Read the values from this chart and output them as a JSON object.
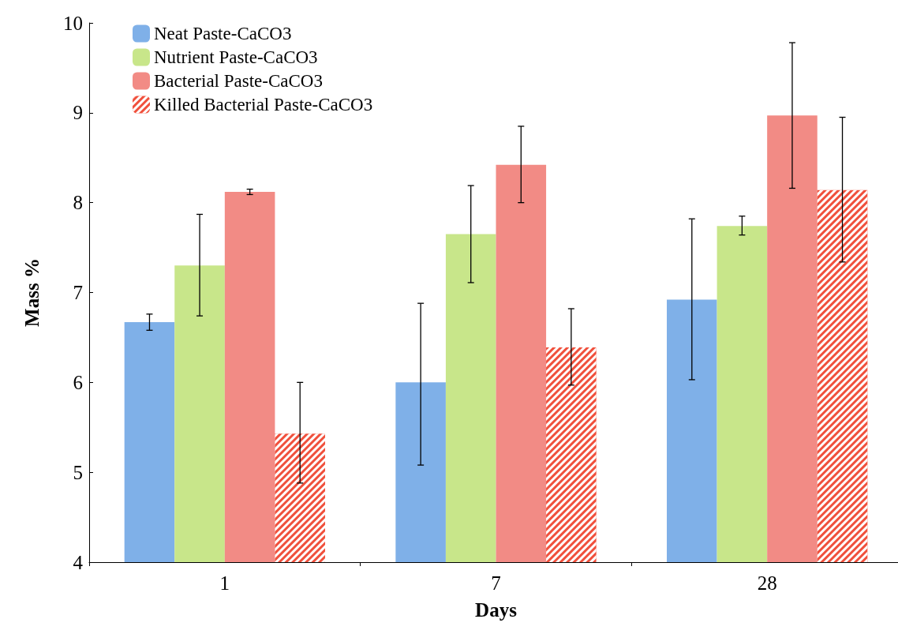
{
  "chart_data": {
    "type": "bar",
    "xlabel": "Days",
    "ylabel": "Mass %",
    "categories": [
      "1",
      "7",
      "28"
    ],
    "series": [
      {
        "name": "Neat Paste-CaCO3",
        "color": "#7fb0e8",
        "values": [
          6.67,
          6.0,
          6.92
        ],
        "errors": [
          [
            6.58,
            6.76
          ],
          [
            5.08,
            6.88
          ],
          [
            6.03,
            7.82
          ]
        ]
      },
      {
        "name": "Nutrient Paste-CaCO3",
        "color": "#c8e68a",
        "values": [
          7.3,
          7.65,
          7.74
        ],
        "errors": [
          [
            6.74,
            7.87
          ],
          [
            7.11,
            8.19
          ],
          [
            7.64,
            7.85
          ]
        ]
      },
      {
        "name": "Bacterial Paste-CaCO3",
        "color": "#f28b85",
        "values": [
          8.12,
          8.42,
          8.97
        ],
        "errors": [
          [
            8.09,
            8.15
          ],
          [
            8.0,
            8.85
          ],
          [
            8.16,
            9.78
          ]
        ]
      },
      {
        "name": "Killed Bacterial Paste-CaCO3",
        "color": "#f0503c",
        "values": [
          5.43,
          6.39,
          8.14
        ],
        "errors": [
          [
            4.88,
            6.0
          ],
          [
            5.97,
            6.82
          ],
          [
            7.34,
            8.95
          ]
        ]
      }
    ],
    "ylim": [
      4,
      10
    ],
    "yticks": [
      4,
      5,
      6,
      7,
      8,
      9,
      10
    ],
    "grid": false,
    "legend": "top left"
  }
}
